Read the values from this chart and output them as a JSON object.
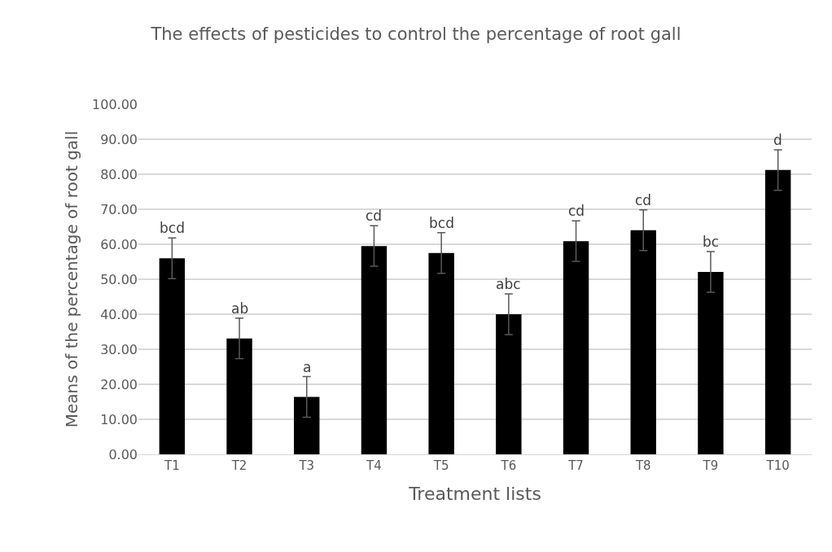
{
  "chart_data": {
    "type": "bar",
    "title": "The effects of pesticides to control the percentage of root gall",
    "xlabel": "Treatment lists",
    "ylabel": "Means of the percentage of root gall",
    "categories": [
      "T1",
      "T2",
      "T3",
      "T4",
      "T5",
      "T6",
      "T7",
      "T8",
      "T9",
      "T10"
    ],
    "values": [
      56.0,
      33.1,
      16.4,
      59.5,
      57.5,
      40.0,
      60.9,
      64.0,
      52.1,
      81.2
    ],
    "errors": [
      5.8,
      5.8,
      5.8,
      5.8,
      5.8,
      5.8,
      5.8,
      5.8,
      5.8,
      5.8
    ],
    "color": "#000000",
    "ylim": [
      0,
      100
    ],
    "yticks": [
      {
        "value": 0,
        "label": "0.00"
      },
      {
        "value": 10,
        "label": "10.00"
      },
      {
        "value": 20,
        "label": "20.00"
      },
      {
        "value": 30,
        "label": "30.00"
      },
      {
        "value": 40,
        "label": "40.00"
      },
      {
        "value": 50,
        "label": "50.00"
      },
      {
        "value": 60,
        "label": "60.00"
      },
      {
        "value": 70,
        "label": "70.00"
      },
      {
        "value": 80,
        "label": "80.00"
      },
      {
        "value": 90,
        "label": "90.00"
      },
      {
        "value": 100,
        "label": "100.00"
      }
    ],
    "grid": "y",
    "annotations": [
      {
        "text": "bcd",
        "x": "T1",
        "y": 61.8
      },
      {
        "text": "ab",
        "x": "T2",
        "y": 38.9
      },
      {
        "text": "a",
        "x": "T3",
        "y": 22.2
      },
      {
        "text": "cd",
        "x": "T4",
        "y": 65.3
      },
      {
        "text": "bcd",
        "x": "T5",
        "y": 63.3
      },
      {
        "text": "abc",
        "x": "T6",
        "y": 45.8
      },
      {
        "text": "cd",
        "x": "T7",
        "y": 66.7
      },
      {
        "text": "cd",
        "x": "T8",
        "y": 69.8
      },
      {
        "text": "bc",
        "x": "T9",
        "y": 57.9
      },
      {
        "text": "d",
        "x": "T10",
        "y": 87.0
      }
    ]
  }
}
